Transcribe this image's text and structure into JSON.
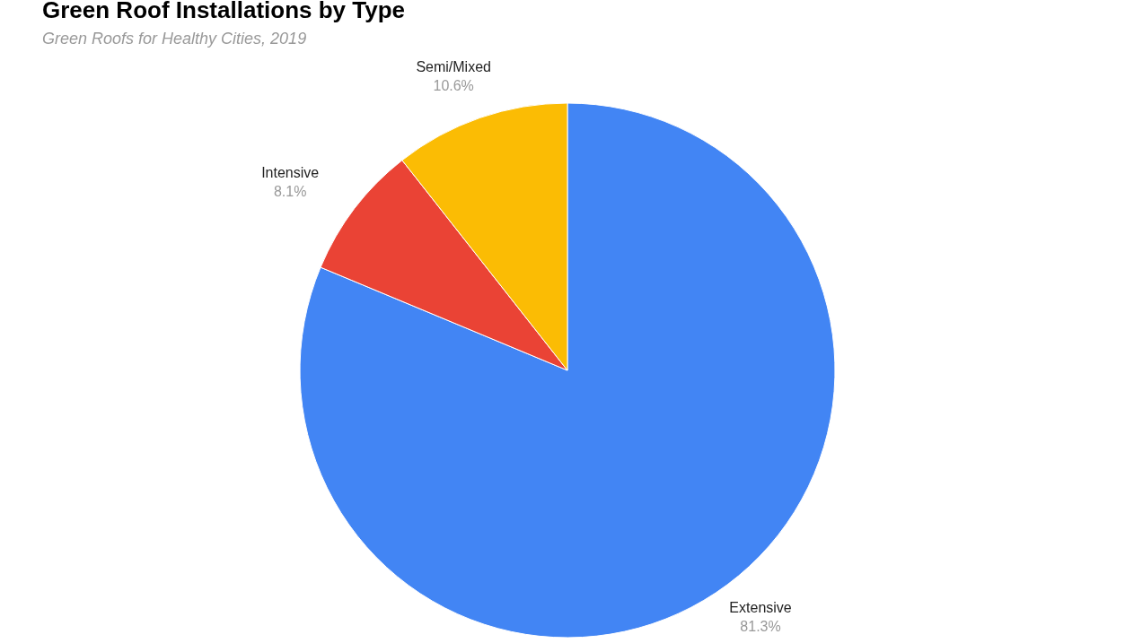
{
  "chart_data": {
    "type": "pie",
    "title": "Green Roof Installations by Type",
    "subtitle": "Green Roofs for Healthy Cities, 2019",
    "categories": [
      "Extensive",
      "Intensive",
      "Semi/Mixed"
    ],
    "values": [
      81.3,
      8.1,
      10.6
    ],
    "colors": [
      "#4285f4",
      "#ea4335",
      "#fbbc04"
    ],
    "value_labels": [
      "81.3%",
      "8.1%",
      "10.6%"
    ]
  }
}
